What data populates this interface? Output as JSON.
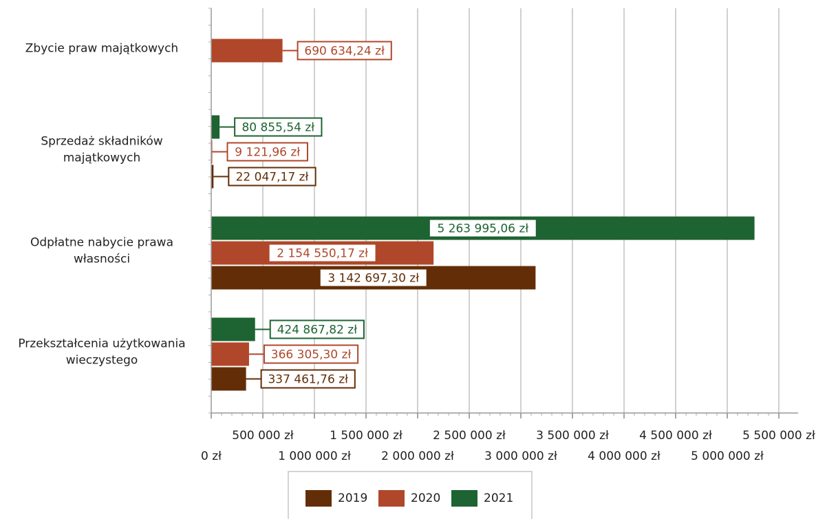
{
  "chart_data": {
    "type": "bar",
    "orientation": "horizontal",
    "categories": [
      [
        "Zbycie praw majątkowych"
      ],
      [
        "Sprzedaż składników",
        "majątkowych"
      ],
      [
        "Odpłatne nabycie prawa",
        "własności"
      ],
      [
        "Przekształcenia użytkowania",
        "wieczystego"
      ]
    ],
    "series": [
      {
        "name": "2019",
        "color": "#632e07",
        "values": [
          null,
          22047.17,
          3142697.3,
          337461.76
        ],
        "labels": [
          null,
          "22 047,17 zł",
          "3 142 697,30 zł",
          "337 461,76 zł"
        ]
      },
      {
        "name": "2020",
        "color": "#b0472a",
        "values": [
          690634.24,
          9121.96,
          2154550.17,
          366305.3
        ],
        "labels": [
          "690 634,24 zł",
          "9 121,96 zł",
          "2 154 550,17 zł",
          "366 305,30 zł"
        ]
      },
      {
        "name": "2021",
        "color": "#1e6332",
        "values": [
          null,
          80855.54,
          5263995.06,
          424867.82
        ],
        "labels": [
          null,
          "80 855,54 zł",
          "5 263 995,06 zł",
          "424 867,82 zł"
        ]
      }
    ],
    "xlim": [
      0,
      5500000
    ],
    "xticks": [
      0,
      500000,
      1000000,
      1500000,
      2000000,
      2500000,
      3000000,
      3500000,
      4000000,
      4500000,
      5000000,
      5500000
    ],
    "xtick_labels": [
      "0 zł",
      "500 000 zł",
      "1 000 000 zł",
      "1 500 000 zł",
      "2 000 000 zł",
      "2 500 000 zł",
      "3 000 000 zł",
      "3 500 000 zł",
      "4 000 000 zł",
      "4 500 000 zł",
      "5 000 000 zł",
      "5 500 000 zł"
    ],
    "grid": true,
    "legend_position": "bottom",
    "title": "",
    "xlabel": "",
    "ylabel": ""
  }
}
